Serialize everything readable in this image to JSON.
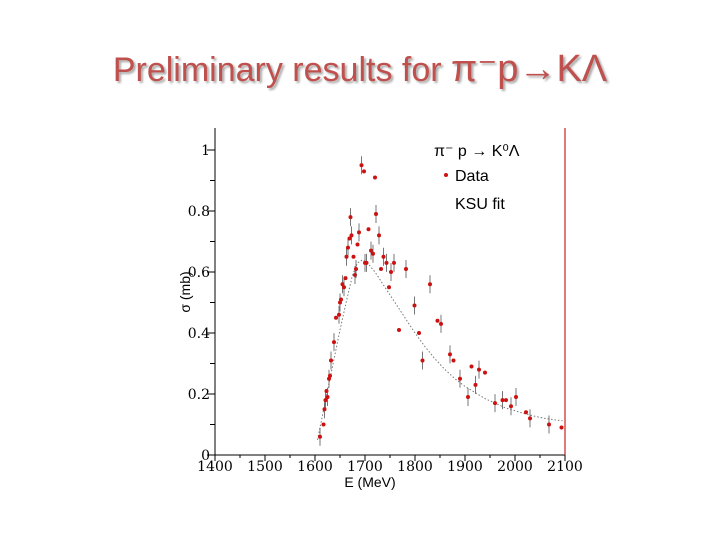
{
  "title": {
    "prefix": "Preliminary results for ",
    "reaction": "π⁻p→KΛ"
  },
  "colors": {
    "data_points": "#cc1111",
    "fit_line": "#777777",
    "marker_line": "#cc2222",
    "title": "#c0504d"
  },
  "chart_data": {
    "type": "scatter",
    "xlabel": "E (MeV)",
    "ylabel": "σ (mb)",
    "xlim": [
      1400,
      2100
    ],
    "ylim": [
      0,
      1.05
    ],
    "x_ticks": [
      1400,
      1500,
      1600,
      1700,
      1800,
      1900,
      2000,
      2100
    ],
    "x_tick_labels": [
      "1400",
      "1500",
      "1600",
      "1700",
      "1800",
      "1900",
      "2000",
      "2100"
    ],
    "y_ticks": [
      0,
      0.2,
      0.4,
      0.6,
      0.8,
      1
    ],
    "y_tick_labels": [
      "0",
      "0.2",
      "0.4",
      "0.6",
      "0.8",
      "1"
    ],
    "vertical_marker_x": 2100,
    "legend": {
      "heading": "π⁻ p → K⁰Λ",
      "entries": [
        "Data",
        "KSU fit"
      ],
      "placement": "top-right"
    },
    "series": [
      {
        "name": "Data",
        "points": [
          [
            1610,
            0.06
          ],
          [
            1617,
            0.1
          ],
          [
            1619,
            0.15
          ],
          [
            1621,
            0.18
          ],
          [
            1623,
            0.21
          ],
          [
            1625,
            0.19
          ],
          [
            1628,
            0.25
          ],
          [
            1630,
            0.26
          ],
          [
            1632,
            0.31
          ],
          [
            1638,
            0.37
          ],
          [
            1642,
            0.45
          ],
          [
            1648,
            0.46
          ],
          [
            1650,
            0.5
          ],
          [
            1652,
            0.51
          ],
          [
            1655,
            0.56
          ],
          [
            1658,
            0.55
          ],
          [
            1661,
            0.58
          ],
          [
            1663,
            0.65
          ],
          [
            1666,
            0.68
          ],
          [
            1669,
            0.71
          ],
          [
            1671,
            0.78
          ],
          [
            1673,
            0.72
          ],
          [
            1677,
            0.65
          ],
          [
            1680,
            0.59
          ],
          [
            1682,
            0.61
          ],
          [
            1685,
            0.69
          ],
          [
            1688,
            0.73
          ],
          [
            1693,
            0.95
          ],
          [
            1698,
            0.93
          ],
          [
            1700,
            0.63
          ],
          [
            1703,
            0.63
          ],
          [
            1707,
            0.74
          ],
          [
            1712,
            0.67
          ],
          [
            1716,
            0.66
          ],
          [
            1720,
            0.91
          ],
          [
            1722,
            0.79
          ],
          [
            1728,
            0.72
          ],
          [
            1732,
            0.61
          ],
          [
            1737,
            0.65
          ],
          [
            1743,
            0.63
          ],
          [
            1748,
            0.55
          ],
          [
            1752,
            0.6
          ],
          [
            1758,
            0.63
          ],
          [
            1768,
            0.41
          ],
          [
            1782,
            0.61
          ],
          [
            1799,
            0.49
          ],
          [
            1808,
            0.4
          ],
          [
            1815,
            0.31
          ],
          [
            1830,
            0.56
          ],
          [
            1845,
            0.44
          ],
          [
            1852,
            0.43
          ],
          [
            1870,
            0.33
          ],
          [
            1877,
            0.31
          ],
          [
            1890,
            0.25
          ],
          [
            1906,
            0.19
          ],
          [
            1913,
            0.29
          ],
          [
            1921,
            0.23
          ],
          [
            1928,
            0.28
          ],
          [
            1940,
            0.27
          ],
          [
            1960,
            0.17
          ],
          [
            1975,
            0.18
          ],
          [
            1982,
            0.18
          ],
          [
            1992,
            0.16
          ],
          [
            2002,
            0.19
          ],
          [
            2022,
            0.14
          ],
          [
            2030,
            0.12
          ],
          [
            2068,
            0.1
          ],
          [
            2093,
            0.09
          ]
        ]
      },
      {
        "name": "KSU fit",
        "points": [
          [
            1605,
            0.05
          ],
          [
            1620,
            0.17
          ],
          [
            1635,
            0.29
          ],
          [
            1650,
            0.41
          ],
          [
            1665,
            0.52
          ],
          [
            1675,
            0.59
          ],
          [
            1685,
            0.63
          ],
          [
            1695,
            0.64
          ],
          [
            1705,
            0.63
          ],
          [
            1720,
            0.6
          ],
          [
            1740,
            0.55
          ],
          [
            1760,
            0.5
          ],
          [
            1780,
            0.45
          ],
          [
            1800,
            0.4
          ],
          [
            1820,
            0.355
          ],
          [
            1840,
            0.315
          ],
          [
            1860,
            0.28
          ],
          [
            1880,
            0.25
          ],
          [
            1900,
            0.225
          ],
          [
            1920,
            0.205
          ],
          [
            1940,
            0.185
          ],
          [
            1960,
            0.17
          ],
          [
            1980,
            0.155
          ],
          [
            2000,
            0.145
          ],
          [
            2020,
            0.135
          ],
          [
            2040,
            0.127
          ],
          [
            2060,
            0.12
          ],
          [
            2080,
            0.115
          ],
          [
            2095,
            0.112
          ]
        ]
      }
    ]
  }
}
